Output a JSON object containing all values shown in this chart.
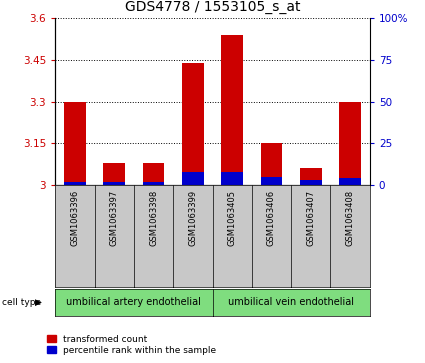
{
  "title": "GDS4778 / 1553105_s_at",
  "samples": [
    "GSM1063396",
    "GSM1063397",
    "GSM1063398",
    "GSM1063399",
    "GSM1063405",
    "GSM1063406",
    "GSM1063407",
    "GSM1063408"
  ],
  "transformed_count": [
    3.3,
    3.08,
    3.08,
    3.44,
    3.54,
    3.15,
    3.06,
    3.3
  ],
  "percentile_rank": [
    2.0,
    2.0,
    2.0,
    8.0,
    8.0,
    5.0,
    3.0,
    4.0
  ],
  "ylim_left": [
    3.0,
    3.6
  ],
  "ylim_right": [
    0,
    100
  ],
  "yticks_left": [
    3.0,
    3.15,
    3.3,
    3.45,
    3.6
  ],
  "yticks_right": [
    0,
    25,
    50,
    75,
    100
  ],
  "ytick_labels_left": [
    "3",
    "3.15",
    "3.3",
    "3.45",
    "3.6"
  ],
  "ytick_labels_right": [
    "0",
    "25",
    "50",
    "75",
    "100%"
  ],
  "red_color": "#cc0000",
  "blue_color": "#0000cc",
  "bg_color": "#ffffff",
  "cell_type_groups": [
    {
      "label": "umbilical artery endothelial",
      "indices": [
        0,
        1,
        2,
        3
      ],
      "color": "#7fdd7f"
    },
    {
      "label": "umbilical vein endothelial",
      "indices": [
        4,
        5,
        6,
        7
      ],
      "color": "#7fdd7f"
    }
  ],
  "cell_type_label": "cell type",
  "legend_red": "transformed count",
  "legend_blue": "percentile rank within the sample",
  "title_fontsize": 10,
  "tick_fontsize": 7.5,
  "sample_fontsize": 6,
  "cell_fontsize": 7,
  "legend_fontsize": 6.5,
  "bar_width": 0.55,
  "sample_box_color": "#c8c8c8"
}
